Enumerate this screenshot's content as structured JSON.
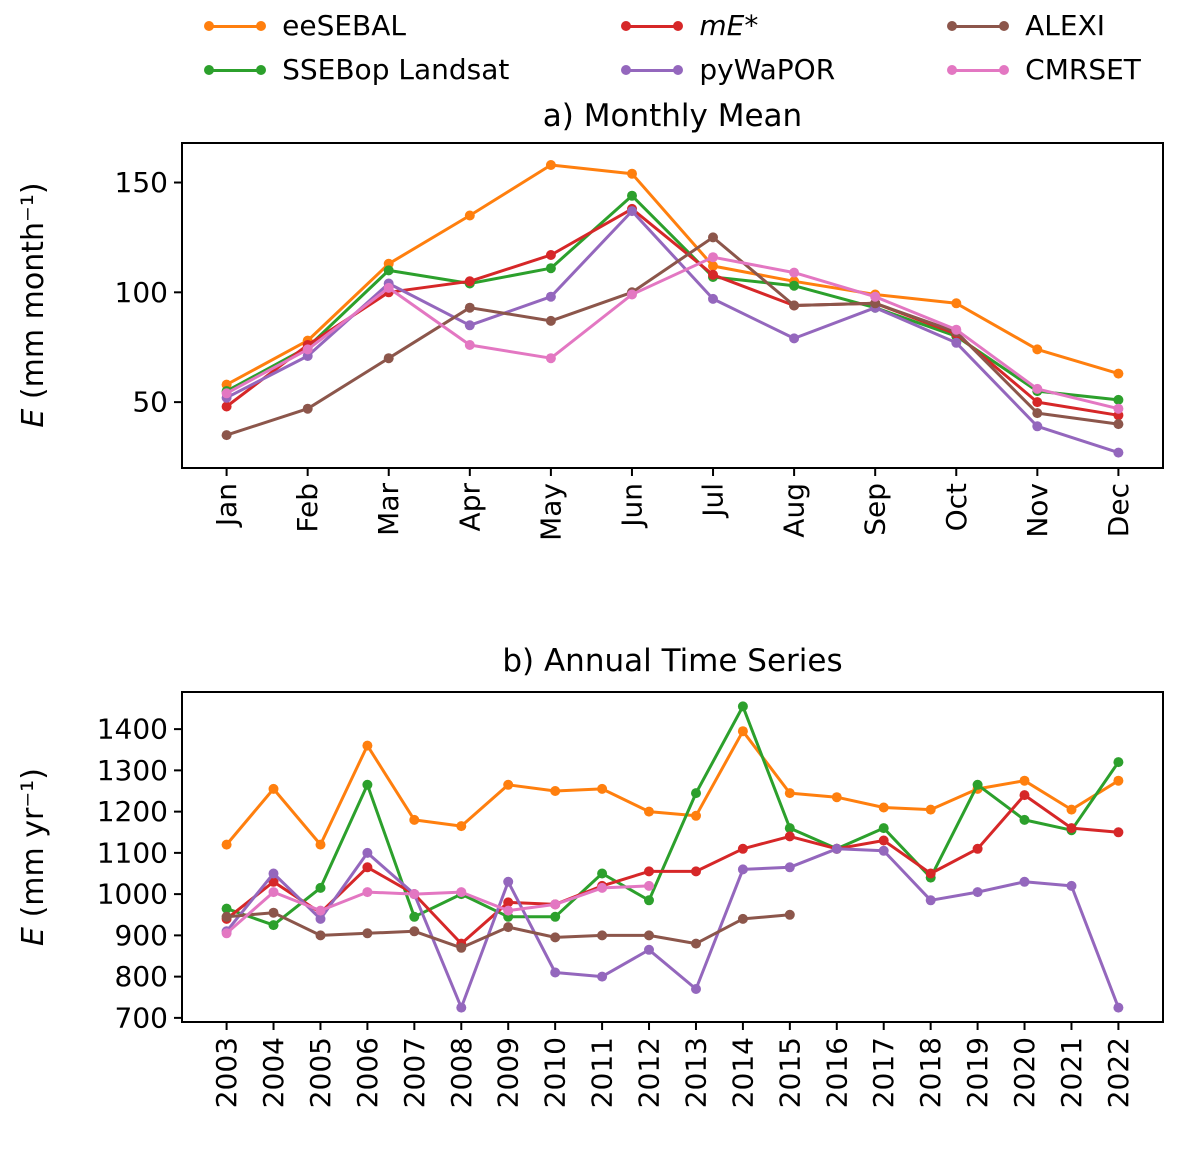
{
  "figure": {
    "background": "#ffffff",
    "text_color": "#000000"
  },
  "legend": {
    "items": [
      {
        "label": "eeSEBAL",
        "color": "#ff7f0e",
        "italic": false
      },
      {
        "label": "mE*",
        "color": "#d62728",
        "italic": true
      },
      {
        "label": "ALEXI",
        "color": "#8c564b",
        "italic": false
      },
      {
        "label": "SSEBop Landsat",
        "color": "#2ca02c",
        "italic": false
      },
      {
        "label": "pyWaPOR",
        "color": "#9467bd",
        "italic": false
      },
      {
        "label": "CMRSET",
        "color": "#e377c2",
        "italic": false
      }
    ]
  },
  "chart_data": [
    {
      "type": "line",
      "id": "monthly",
      "title": "a) Monthly Mean",
      "ylabel_var": "E",
      "ylabel_rest": " (mm month⁻¹)",
      "categories": [
        "Jan",
        "Feb",
        "Mar",
        "Apr",
        "May",
        "Jun",
        "Jul",
        "Aug",
        "Sep",
        "Oct",
        "Nov",
        "Dec"
      ],
      "yticks": [
        50,
        100,
        150
      ],
      "ylim": [
        20,
        168
      ],
      "xlim": [
        -0.55,
        11.55
      ],
      "grid": false,
      "legend_position": "above-figure",
      "series": [
        {
          "name": "eeSEBAL",
          "color": "#ff7f0e",
          "values": [
            58,
            78,
            113,
            135,
            158,
            154,
            112,
            105,
            99,
            95,
            74,
            63
          ]
        },
        {
          "name": "SSEBop Landsat",
          "color": "#2ca02c",
          "values": [
            55,
            75,
            110,
            104,
            111,
            144,
            107,
            103,
            93,
            80,
            55,
            51
          ]
        },
        {
          "name": "mE*",
          "color": "#d62728",
          "values": [
            48,
            76,
            100,
            105,
            117,
            138,
            108,
            94,
            95,
            81,
            50,
            44
          ]
        },
        {
          "name": "pyWaPOR",
          "color": "#9467bd",
          "values": [
            52,
            71,
            104,
            85,
            98,
            137,
            97,
            79,
            93,
            77,
            39,
            27
          ]
        },
        {
          "name": "ALEXI",
          "color": "#8c564b",
          "values": [
            35,
            47,
            70,
            93,
            87,
            100,
            125,
            94,
            95,
            82,
            45,
            40
          ]
        },
        {
          "name": "CMRSET",
          "color": "#e377c2",
          "values": [
            54,
            74,
            102,
            76,
            70,
            99,
            116,
            109,
            98,
            83,
            56,
            47
          ]
        }
      ]
    },
    {
      "type": "line",
      "id": "annual",
      "title": "b) Annual Time Series",
      "ylabel_var": "E",
      "ylabel_rest": " (mm yr⁻¹)",
      "categories": [
        "2003",
        "2004",
        "2005",
        "2006",
        "2007",
        "2008",
        "2009",
        "2010",
        "2011",
        "2012",
        "2013",
        "2014",
        "2015",
        "2016",
        "2017",
        "2018",
        "2019",
        "2020",
        "2021",
        "2022"
      ],
      "yticks": [
        700,
        800,
        900,
        1000,
        1100,
        1200,
        1300,
        1400
      ],
      "ylim": [
        690,
        1490
      ],
      "xlim": [
        -0.95,
        19.95
      ],
      "grid": false,
      "legend_position": "above-figure",
      "series": [
        {
          "name": "eeSEBAL",
          "color": "#ff7f0e",
          "values": [
            1120,
            1255,
            1120,
            1360,
            1180,
            1165,
            1265,
            1250,
            1255,
            1200,
            1190,
            1395,
            1245,
            1235,
            1210,
            1205,
            1255,
            1275,
            1205,
            1275
          ]
        },
        {
          "name": "SSEBop Landsat",
          "color": "#2ca02c",
          "values": [
            965,
            925,
            1015,
            1265,
            945,
            1000,
            945,
            945,
            1050,
            985,
            1245,
            1455,
            1160,
            1110,
            1160,
            1040,
            1265,
            1180,
            1155,
            1320
          ]
        },
        {
          "name": "mE*",
          "color": "#d62728",
          "values": [
            940,
            1030,
            955,
            1065,
            1000,
            880,
            980,
            975,
            1020,
            1055,
            1055,
            1110,
            1140,
            1110,
            1130,
            1050,
            1110,
            1240,
            1160,
            1150
          ]
        },
        {
          "name": "pyWaPOR",
          "color": "#9467bd",
          "values": [
            910,
            1050,
            940,
            1100,
            1000,
            725,
            1030,
            810,
            800,
            865,
            770,
            1060,
            1065,
            1110,
            1105,
            985,
            1005,
            1030,
            1020,
            725
          ]
        },
        {
          "name": "ALEXI",
          "color": "#8c564b",
          "values": [
            945,
            955,
            900,
            905,
            910,
            870,
            920,
            895,
            900,
            900,
            880,
            940,
            950
          ]
        },
        {
          "name": "CMRSET",
          "color": "#e377c2",
          "values": [
            905,
            1005,
            960,
            1005,
            1000,
            1005,
            960,
            975,
            1015,
            1020
          ]
        }
      ]
    }
  ]
}
